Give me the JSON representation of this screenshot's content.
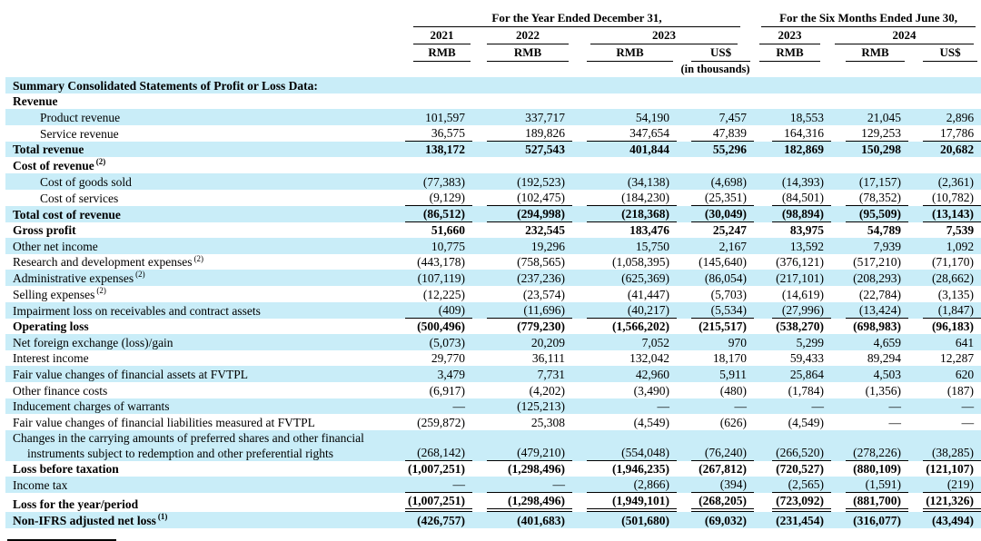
{
  "table": {
    "header": {
      "year_group": "For the Year Ended December 31,",
      "six_month_group": "For the Six Months Ended June 30,",
      "year_cols": [
        {
          "label": "2021",
          "span": 1
        },
        {
          "label": "2022",
          "span": 1
        },
        {
          "label": "2023",
          "span": 2
        },
        {
          "label": "2023",
          "span": 1
        },
        {
          "label": "2024",
          "span": 2
        }
      ],
      "units": [
        "RMB",
        "RMB",
        "RMB",
        "US$",
        "RMB",
        "RMB",
        "US$"
      ],
      "in_thousands": "(in thousands)"
    },
    "rows": [
      {
        "label": "Summary Consolidated Statements of Profit or Loss Data:",
        "bold": true,
        "bg": "cyan",
        "indent": 0,
        "vals": [
          "",
          "",
          "",
          "",
          "",
          "",
          ""
        ]
      },
      {
        "label": "Revenue",
        "bold": true,
        "bg": "white",
        "indent": 0,
        "vals": [
          "",
          "",
          "",
          "",
          "",
          "",
          ""
        ]
      },
      {
        "label": "Product revenue",
        "bold": false,
        "bg": "cyan",
        "indent": 1,
        "vals": [
          "101,597",
          "337,717",
          "54,190",
          "7,457",
          "18,553",
          "21,045",
          "2,896"
        ]
      },
      {
        "label": "Service revenue",
        "bold": false,
        "bg": "white",
        "indent": 1,
        "rule": "single",
        "vals": [
          "36,575",
          "189,826",
          "347,654",
          "47,839",
          "164,316",
          "129,253",
          "17,786"
        ]
      },
      {
        "label": "Total revenue",
        "bold": true,
        "bg": "cyan",
        "indent": 0,
        "vals": [
          "138,172",
          "527,543",
          "401,844",
          "55,296",
          "182,869",
          "150,298",
          "20,682"
        ]
      },
      {
        "label": "Cost of revenue",
        "sup": "(2)",
        "bold": true,
        "bg": "white",
        "indent": 0,
        "vals": [
          "",
          "",
          "",
          "",
          "",
          "",
          ""
        ]
      },
      {
        "label": "Cost of goods sold",
        "bold": false,
        "bg": "cyan",
        "indent": 1,
        "vals": [
          "(77,383)",
          "(192,523)",
          "(34,138)",
          "(4,698)",
          "(14,393)",
          "(17,157)",
          "(2,361)"
        ]
      },
      {
        "label": "Cost of services",
        "bold": false,
        "bg": "white",
        "indent": 1,
        "rule": "single",
        "vals": [
          "(9,129)",
          "(102,475)",
          "(184,230)",
          "(25,351)",
          "(84,501)",
          "(78,352)",
          "(10,782)"
        ]
      },
      {
        "label": "Total cost of revenue",
        "bold": true,
        "bg": "cyan",
        "indent": 0,
        "rule": "single",
        "vals": [
          "(86,512)",
          "(294,998)",
          "(218,368)",
          "(30,049)",
          "(98,894)",
          "(95,509)",
          "(13,143)"
        ]
      },
      {
        "label": "Gross profit",
        "bold": true,
        "bg": "white",
        "indent": 0,
        "vals": [
          "51,660",
          "232,545",
          "183,476",
          "25,247",
          "83,975",
          "54,789",
          "7,539"
        ]
      },
      {
        "label": "Other net income",
        "bold": false,
        "bg": "cyan",
        "indent": 0,
        "vals": [
          "10,775",
          "19,296",
          "15,750",
          "2,167",
          "13,592",
          "7,939",
          "1,092"
        ]
      },
      {
        "label": "Research and development expenses",
        "sup": "(2)",
        "bold": false,
        "bg": "white",
        "indent": 0,
        "vals": [
          "(443,178)",
          "(758,565)",
          "(1,058,395)",
          "(145,640)",
          "(376,121)",
          "(517,210)",
          "(71,170)"
        ]
      },
      {
        "label": "Administrative expenses",
        "sup": "(2)",
        "bold": false,
        "bg": "cyan",
        "indent": 0,
        "vals": [
          "(107,119)",
          "(237,236)",
          "(625,369)",
          "(86,054)",
          "(217,101)",
          "(208,293)",
          "(28,662)"
        ]
      },
      {
        "label": "Selling expenses",
        "sup": "(2)",
        "bold": false,
        "bg": "white",
        "indent": 0,
        "vals": [
          "(12,225)",
          "(23,574)",
          "(41,447)",
          "(5,703)",
          "(14,619)",
          "(22,784)",
          "(3,135)"
        ]
      },
      {
        "label": "Impairment loss on receivables and contract assets",
        "bold": false,
        "bg": "cyan",
        "indent": 0,
        "rule": "single",
        "vals": [
          "(409)",
          "(11,696)",
          "(40,217)",
          "(5,534)",
          "(27,996)",
          "(13,424)",
          "(1,847)"
        ]
      },
      {
        "label": "Operating loss",
        "bold": true,
        "bg": "white",
        "indent": 0,
        "vals": [
          "(500,496)",
          "(779,230)",
          "(1,566,202)",
          "(215,517)",
          "(538,270)",
          "(698,983)",
          "(96,183)"
        ]
      },
      {
        "label": "Net foreign exchange (loss)/gain",
        "bold": false,
        "bg": "cyan",
        "indent": 0,
        "vals": [
          "(5,073)",
          "20,209",
          "7,052",
          "970",
          "5,299",
          "4,659",
          "641"
        ]
      },
      {
        "label": "Interest income",
        "bold": false,
        "bg": "white",
        "indent": 0,
        "vals": [
          "29,770",
          "36,111",
          "132,042",
          "18,170",
          "59,433",
          "89,294",
          "12,287"
        ]
      },
      {
        "label": "Fair value changes of financial assets at FVTPL",
        "bold": false,
        "bg": "cyan",
        "indent": 0,
        "vals": [
          "3,479",
          "7,731",
          "42,960",
          "5,911",
          "25,864",
          "4,503",
          "620"
        ]
      },
      {
        "label": "Other finance costs",
        "bold": false,
        "bg": "white",
        "indent": 0,
        "vals": [
          "(6,917)",
          "(4,202)",
          "(3,490)",
          "(480)",
          "(1,784)",
          "(1,356)",
          "(187)"
        ]
      },
      {
        "label": "Inducement charges of warrants",
        "bold": false,
        "bg": "cyan",
        "indent": 0,
        "vals": [
          "—",
          "(125,213)",
          "—",
          "—",
          "—",
          "—",
          "—"
        ]
      },
      {
        "label": "Fair value changes of financial liabilities measured at FVTPL",
        "bold": false,
        "bg": "white",
        "indent": 0,
        "vals": [
          "(259,872)",
          "25,308",
          "(4,549)",
          "(626)",
          "(4,549)",
          "—",
          "—"
        ]
      },
      {
        "label": "Changes in the carrying amounts of preferred shares and other financial",
        "label2": "instruments subject to redemption and other preferential rights",
        "bold": false,
        "bg": "cyan",
        "indent": 0,
        "rule": "single",
        "vals": [
          "(268,142)",
          "(479,210)",
          "(554,048)",
          "(76,240)",
          "(266,520)",
          "(278,226)",
          "(38,285)"
        ]
      },
      {
        "label": "Loss before taxation",
        "bold": true,
        "bg": "white",
        "indent": 0,
        "vals": [
          "(1,007,251)",
          "(1,298,496)",
          "(1,946,235)",
          "(267,812)",
          "(720,527)",
          "(880,109)",
          "(121,107)"
        ]
      },
      {
        "label": "Income tax",
        "bold": false,
        "bg": "cyan",
        "indent": 0,
        "rule": "single",
        "vals": [
          "—",
          "—",
          "(2,866)",
          "(394)",
          "(2,565)",
          "(1,591)",
          "(219)"
        ]
      },
      {
        "label": "Loss for the year/period",
        "bold": true,
        "bg": "white",
        "indent": 0,
        "rule": "double",
        "vals": [
          "(1,007,251)",
          "(1,298,496)",
          "(1,949,101)",
          "(268,205)",
          "(723,092)",
          "(881,700)",
          "(121,326)"
        ]
      },
      {
        "label": "Non-IFRS adjusted net loss",
        "sup": "(1)",
        "bold": true,
        "bg": "cyan",
        "indent": 0,
        "vals": [
          "(426,757)",
          "(401,683)",
          "(501,680)",
          "(69,032)",
          "(231,454)",
          "(316,077)",
          "(43,494)"
        ]
      }
    ]
  }
}
